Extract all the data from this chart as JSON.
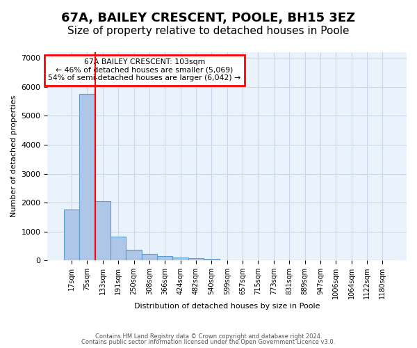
{
  "title1": "67A, BAILEY CRESCENT, POOLE, BH15 3EZ",
  "title2": "Size of property relative to detached houses in Poole",
  "xlabel": "Distribution of detached houses by size in Poole",
  "ylabel": "Number of detached properties",
  "categories": [
    "17sqm",
    "75sqm",
    "133sqm",
    "191sqm",
    "250sqm",
    "308sqm",
    "366sqm",
    "424sqm",
    "482sqm",
    "540sqm",
    "599sqm",
    "657sqm",
    "715sqm",
    "773sqm",
    "831sqm",
    "889sqm",
    "947sqm",
    "1006sqm",
    "1064sqm",
    "1122sqm",
    "1180sqm"
  ],
  "bar_values": [
    1750,
    5750,
    2050,
    820,
    370,
    230,
    140,
    100,
    80,
    65,
    0,
    0,
    0,
    0,
    0,
    0,
    0,
    0,
    0,
    0,
    0
  ],
  "bar_color": "#aec6e8",
  "bar_edge_color": "#5a9fd4",
  "red_line_x": 1.5,
  "annotation_text": "67A BAILEY CRESCENT: 103sqm\n← 46% of detached houses are smaller (5,069)\n54% of semi-detached houses are larger (6,042) →",
  "ylim": [
    0,
    7200
  ],
  "yticks": [
    0,
    1000,
    2000,
    3000,
    4000,
    5000,
    6000,
    7000
  ],
  "grid_color": "#c8d8e8",
  "background_color": "#eaf2fb",
  "footer1": "Contains HM Land Registry data © Crown copyright and database right 2024.",
  "footer2": "Contains public sector information licensed under the Open Government Licence v3.0.",
  "title1_fontsize": 13,
  "title2_fontsize": 11
}
